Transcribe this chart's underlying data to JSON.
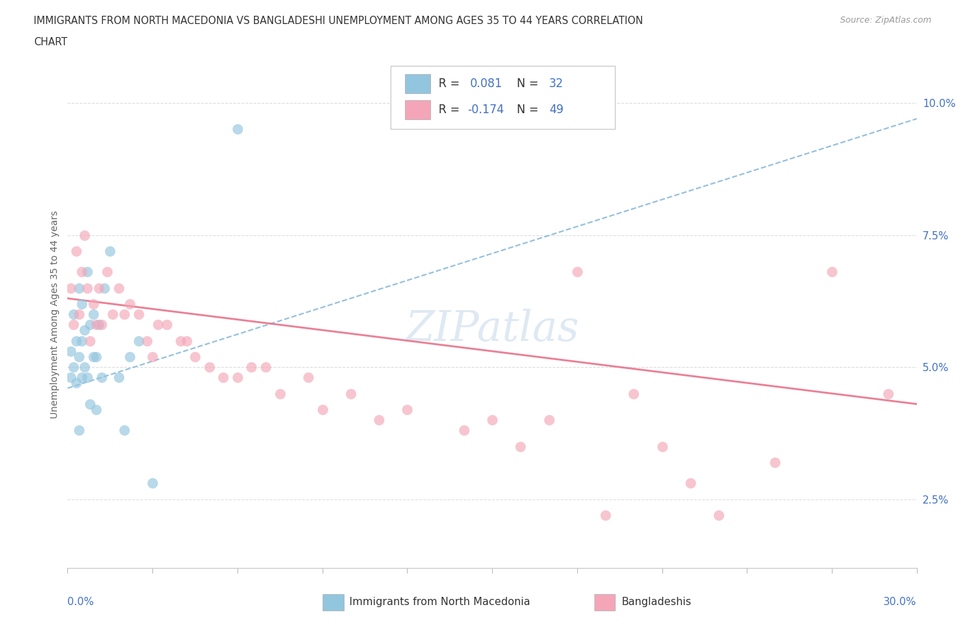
{
  "title_line1": "IMMIGRANTS FROM NORTH MACEDONIA VS BANGLADESHI UNEMPLOYMENT AMONG AGES 35 TO 44 YEARS CORRELATION",
  "title_line2": "CHART",
  "source": "Source: ZipAtlas.com",
  "ylabel": "Unemployment Among Ages 35 to 44 years",
  "yticks": [
    "2.5%",
    "5.0%",
    "7.5%",
    "10.0%"
  ],
  "ytick_vals": [
    0.025,
    0.05,
    0.075,
    0.1
  ],
  "xlim": [
    0.0,
    0.3
  ],
  "ylim": [
    0.012,
    0.108
  ],
  "color_blue": "#92c5de",
  "color_pink": "#f4a6b8",
  "trendline_blue_color": "#7ab0d4",
  "trendline_pink_color": "#e8728a",
  "watermark": "ZIPatlas",
  "blue_x": [
    0.001,
    0.001,
    0.002,
    0.002,
    0.003,
    0.003,
    0.004,
    0.004,
    0.004,
    0.005,
    0.005,
    0.005,
    0.006,
    0.006,
    0.007,
    0.007,
    0.008,
    0.008,
    0.009,
    0.009,
    0.01,
    0.01,
    0.011,
    0.012,
    0.013,
    0.015,
    0.018,
    0.02,
    0.022,
    0.025,
    0.03,
    0.06
  ],
  "blue_y": [
    0.048,
    0.053,
    0.05,
    0.06,
    0.047,
    0.055,
    0.038,
    0.052,
    0.065,
    0.048,
    0.055,
    0.062,
    0.05,
    0.057,
    0.068,
    0.048,
    0.043,
    0.058,
    0.052,
    0.06,
    0.042,
    0.052,
    0.058,
    0.048,
    0.065,
    0.072,
    0.048,
    0.038,
    0.052,
    0.055,
    0.028,
    0.095
  ],
  "pink_x": [
    0.001,
    0.002,
    0.003,
    0.004,
    0.005,
    0.006,
    0.007,
    0.008,
    0.009,
    0.01,
    0.011,
    0.012,
    0.014,
    0.016,
    0.018,
    0.02,
    0.022,
    0.025,
    0.028,
    0.03,
    0.032,
    0.035,
    0.04,
    0.042,
    0.045,
    0.05,
    0.055,
    0.06,
    0.065,
    0.07,
    0.075,
    0.085,
    0.09,
    0.1,
    0.11,
    0.12,
    0.14,
    0.15,
    0.16,
    0.17,
    0.18,
    0.19,
    0.2,
    0.21,
    0.22,
    0.23,
    0.25,
    0.27,
    0.29
  ],
  "pink_y": [
    0.065,
    0.058,
    0.072,
    0.06,
    0.068,
    0.075,
    0.065,
    0.055,
    0.062,
    0.058,
    0.065,
    0.058,
    0.068,
    0.06,
    0.065,
    0.06,
    0.062,
    0.06,
    0.055,
    0.052,
    0.058,
    0.058,
    0.055,
    0.055,
    0.052,
    0.05,
    0.048,
    0.048,
    0.05,
    0.05,
    0.045,
    0.048,
    0.042,
    0.045,
    0.04,
    0.042,
    0.038,
    0.04,
    0.035,
    0.04,
    0.068,
    0.022,
    0.045,
    0.035,
    0.028,
    0.022,
    0.032,
    0.068,
    0.045
  ],
  "blue_trend_x0": 0.0,
  "blue_trend_x1": 0.3,
  "blue_trend_y0": 0.046,
  "blue_trend_y1": 0.097,
  "pink_trend_x0": 0.0,
  "pink_trend_x1": 0.3,
  "pink_trend_y0": 0.063,
  "pink_trend_y1": 0.043
}
